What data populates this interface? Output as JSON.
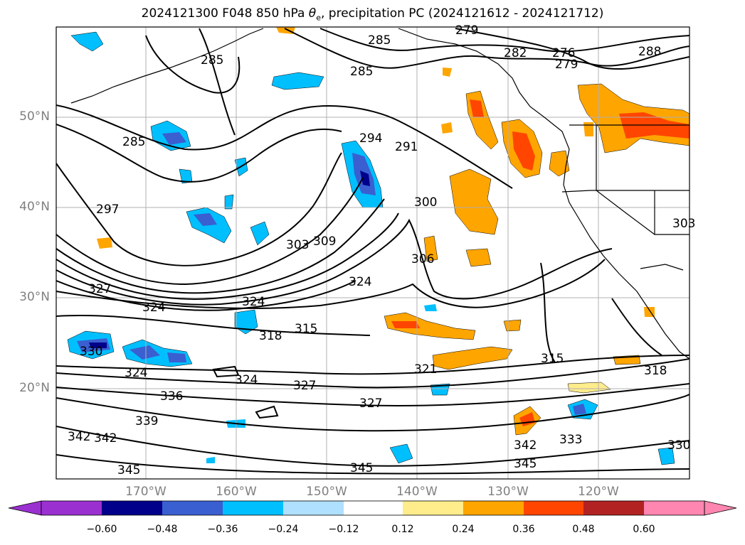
{
  "title": {
    "prefix": "2024121300 F048 850 hPa ",
    "theta": "θ",
    "theta_sub": "e",
    "suffix": ", precipitation PC (2024121612 - 2024121712)"
  },
  "map": {
    "lon_labels": [
      "170°W",
      "160°W",
      "150°W",
      "140°W",
      "130°W",
      "120°W"
    ],
    "lat_labels": [
      "50°N",
      "40°N",
      "30°N",
      "20°N"
    ],
    "lon_range": [
      -180,
      -110
    ],
    "lat_range": [
      10,
      60
    ],
    "gridlines": true
  },
  "contours": {
    "field": "850 hPa theta-e",
    "labels": [
      "285",
      "285",
      "285",
      "288",
      "282",
      "279",
      "276",
      "279",
      "294",
      "291",
      "285",
      "297",
      "300",
      "303",
      "309",
      "306",
      "324",
      "324",
      "327",
      "327",
      "324",
      "318",
      "315",
      "315",
      "318",
      "321",
      "324",
      "327",
      "330",
      "324",
      "336",
      "339",
      "342",
      "342",
      "345",
      "345",
      "342",
      "345",
      "333",
      "330",
      "303"
    ]
  },
  "colorbar": {
    "ticks": [
      "−0.60",
      "−0.48",
      "−0.36",
      "−0.24",
      "−0.12",
      "0.12",
      "0.24",
      "0.36",
      "0.48",
      "0.60"
    ],
    "colors": [
      "#9b30d0",
      "#00008b",
      "#3a5fd0",
      "#00bfff",
      "#afe0ff",
      "#ffffff",
      "#ffec8b",
      "#ffa500",
      "#ff4500",
      "#b22222",
      "#ff86b0"
    ],
    "extend": "both"
  }
}
